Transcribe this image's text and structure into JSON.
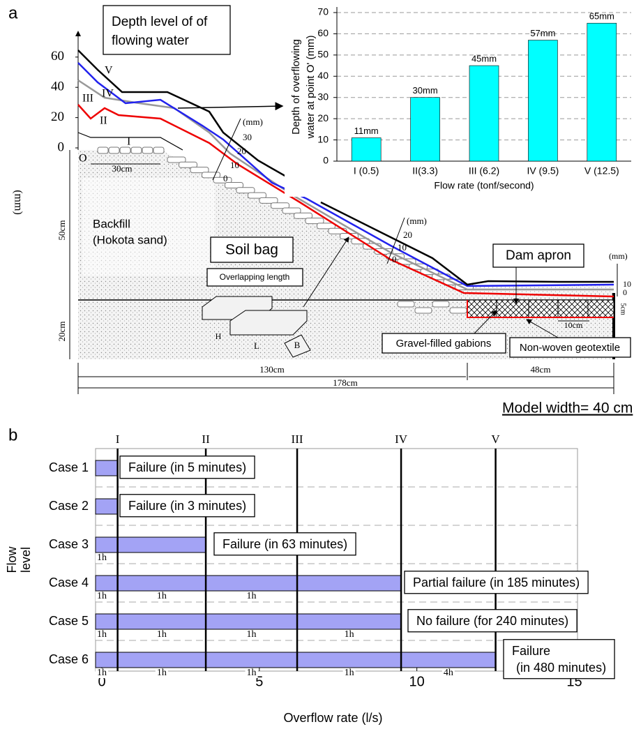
{
  "diagram": {
    "panel_label": "a",
    "title": [
      "Depth level of of",
      "flowing water"
    ],
    "depth_ticks": [
      0,
      20,
      40,
      60
    ],
    "depth_unit": "(mm)",
    "profile_labels": [
      "I",
      "II",
      "III",
      "IV",
      "V"
    ],
    "origin_label": "O",
    "slope_scale_1": {
      "unit": "(mm)",
      "ticks": [
        30,
        20,
        10,
        0
      ]
    },
    "slope_scale_2": {
      "unit": "(mm)",
      "ticks": [
        20,
        10,
        0
      ]
    },
    "apron_scale": {
      "unit": "(mm)",
      "ticks": [
        10,
        0
      ]
    },
    "dimensions": {
      "crest": "30cm",
      "backfill_height": "50cm",
      "foundation_height": "20cm",
      "slope_length": "130cm",
      "apron_length": "48cm",
      "total_length": "178cm",
      "gabion_length": "10cm",
      "gabion_height": "5cm"
    },
    "labels": {
      "backfill": [
        "Backfill",
        "(Hokota sand)"
      ],
      "soil_bag": "Soil bag",
      "overlap": "Overlapping length",
      "h": "H",
      "l": "L",
      "b": "B",
      "dam_apron": "Dam apron",
      "gabions": "Gravel-filled gabions",
      "geotextile": "Non-woven geotextile",
      "model_width": "Model width= 40 cm"
    }
  },
  "panel_b_label": "b",
  "chart_data": [
    {
      "type": "bar",
      "categories": [
        "I (0.5)",
        "II(3.3)",
        "III (6.2)",
        "IV (9.5)",
        "V (12.5)"
      ],
      "values": [
        11,
        30,
        45,
        57,
        65
      ],
      "value_labels": [
        "11mm",
        "30mm",
        "45mm",
        "57mm",
        "65mm"
      ],
      "color": "#00ffff",
      "ylim": [
        0,
        70
      ],
      "yticks": [
        0,
        10,
        20,
        30,
        40,
        50,
        60,
        70
      ],
      "ylabel": [
        "Depth of overflowing",
        "water at point O' (mm)"
      ],
      "xlabel": "Flow rate (tonf/second)",
      "grid": true
    },
    {
      "type": "bar",
      "orientation": "horizontal",
      "categories": [
        "Case 1",
        "Case 2",
        "Case 3",
        "Case 4",
        "Case 5",
        "Case 6"
      ],
      "values": [
        0.5,
        0.5,
        3.3,
        9.5,
        9.5,
        12.5
      ],
      "color": "#a3a3f5",
      "annotations": [
        [
          "Failure (in 5 minutes)"
        ],
        [
          "Failure (in 3 minutes)"
        ],
        [
          "Failure (in 63 minutes)"
        ],
        [
          "Partial failure (in 185 minutes)"
        ],
        [
          "No failure (for 240 minutes)"
        ],
        [
          "Failure",
          "(in 480 minutes)"
        ]
      ],
      "duration_labels": [
        [],
        [],
        [
          "1h"
        ],
        [
          "1h",
          "1h",
          "1h"
        ],
        [
          "1h",
          "1h",
          "1h",
          "1h"
        ],
        [
          "1h",
          "1h",
          "1h",
          "1h",
          "4h"
        ]
      ],
      "reference_lines": [
        {
          "value": 0.5,
          "label": "I"
        },
        {
          "value": 3.3,
          "label": "II"
        },
        {
          "value": 6.2,
          "label": "III"
        },
        {
          "value": 9.5,
          "label": "IV"
        },
        {
          "value": 12.5,
          "label": "V"
        }
      ],
      "xlim": [
        -0.2,
        15.1
      ],
      "xticks": [
        0,
        5,
        10,
        15
      ],
      "xlabel": "Overflow rate (l/s)",
      "ylabel": [
        "Flow",
        "level"
      ],
      "grid": true
    }
  ]
}
